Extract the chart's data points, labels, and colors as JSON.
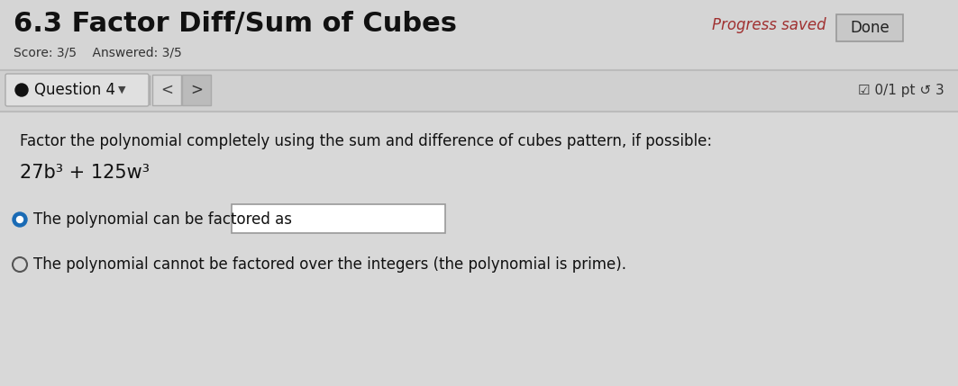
{
  "bg_color": "#d8d8d8",
  "white_bg": "#e8e8e8",
  "title": "6.3 Factor Diff/Sum of Cubes",
  "title_fontsize": 22,
  "score_text": "Score: 3/5    Answered: 3/5",
  "score_fontsize": 10,
  "progress_saved_text": "Progress saved",
  "progress_saved_color": "#a03030",
  "done_text": "Done",
  "done_fontsize": 12,
  "question_label": "Question 4",
  "question_fontsize": 12,
  "points_text": "☑ 0/1 pt ↺ 3",
  "points_fontsize": 11,
  "instruction_text": "Factor the polynomial completely using the sum and difference of cubes pattern, if possible:",
  "instruction_fontsize": 12,
  "polynomial_text": "27b³ + 125w³",
  "polynomial_fontsize": 15,
  "option1_text": "The polynomial can be factored as",
  "option2_text": "The polynomial cannot be factored over the integers (the polynomial is prime).",
  "option_fontsize": 12,
  "radio_color_selected": "#1a6bb5",
  "radio_color_unselected_fill": "#d8d8d8",
  "radio_color_unselected_edge": "#555555",
  "input_box_color": "#ffffff",
  "separator_color": "#bbbbbb",
  "question_bar_bg": "#c8c8c8",
  "done_box_color": "#c8c8c8",
  "done_box_edge": "#999999",
  "content_bg": "#d8d8d8"
}
